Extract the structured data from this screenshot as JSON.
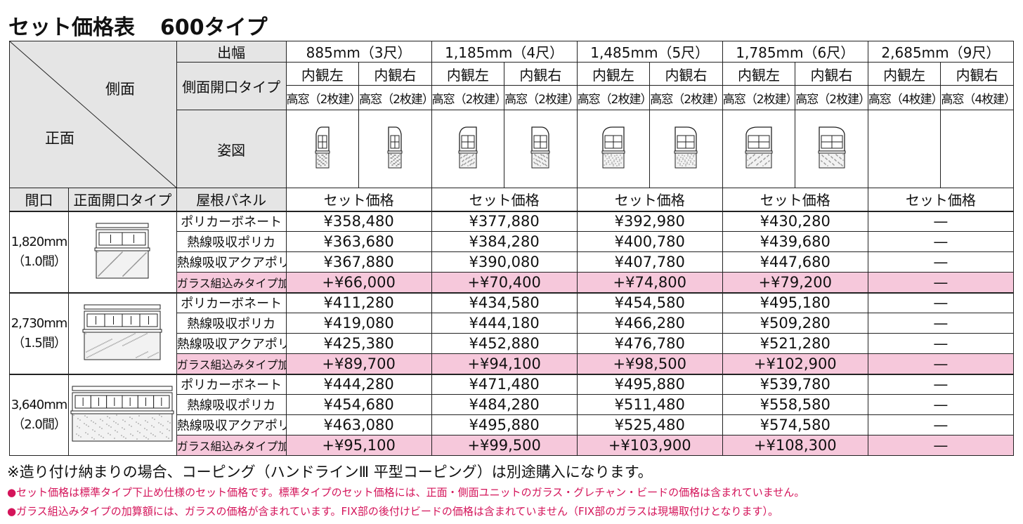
{
  "title": "セット価格表",
  "subtitle": "600タイプ",
  "header": {
    "corner_side": "側面",
    "corner_front": "正面",
    "width_label": "出幅",
    "side_open_label": "側面開口タイプ",
    "figure_label": "姿図",
    "col_maguchi": "間口",
    "col_front_open": "正面開口タイプ",
    "col_roof": "屋根パネル",
    "set_price": "セット価格",
    "widths": [
      "885mm（3尺）",
      "1,185mm（4尺）",
      "1,485mm（5尺）",
      "1,785mm（6尺）",
      "2,685mm（9尺）"
    ],
    "left": "内観左",
    "right": "内観右",
    "windows": [
      [
        "高窓（2枚建）",
        "高窓（2枚建）"
      ],
      [
        "高窓（2枚建）",
        "高窓（2枚建）"
      ],
      [
        "高窓（2枚建）",
        "高窓（2枚建）"
      ],
      [
        "高窓（2枚建）",
        "高窓（2枚建）"
      ],
      [
        "高窓（4枚建）",
        "高窓（4枚建）"
      ]
    ]
  },
  "groups": [
    {
      "maguchi": "1,820mm",
      "ken": "（1.0間）",
      "rows": [
        {
          "panel": "ポリカーボネート",
          "prices": [
            "¥358,480",
            "¥377,880",
            "¥392,980",
            "¥430,280",
            "—"
          ]
        },
        {
          "panel": "熱線吸収ポリカ",
          "prices": [
            "¥363,680",
            "¥384,280",
            "¥400,780",
            "¥439,680",
            "—"
          ]
        },
        {
          "panel": "熱線吸収アクアポリカ",
          "prices": [
            "¥367,880",
            "¥390,080",
            "¥407,780",
            "¥447,680",
            "—"
          ]
        },
        {
          "panel": "ガラス組込みタイプ加算額",
          "prices": [
            "+¥66,000",
            "+¥70,400",
            "+¥74,800",
            "+¥79,200",
            "—"
          ]
        }
      ]
    },
    {
      "maguchi": "2,730mm",
      "ken": "（1.5間）",
      "rows": [
        {
          "panel": "ポリカーボネート",
          "prices": [
            "¥411,280",
            "¥434,580",
            "¥454,580",
            "¥495,180",
            "—"
          ]
        },
        {
          "panel": "熱線吸収ポリカ",
          "prices": [
            "¥419,080",
            "¥444,180",
            "¥466,280",
            "¥509,280",
            "—"
          ]
        },
        {
          "panel": "熱線吸収アクアポリカ",
          "prices": [
            "¥425,380",
            "¥452,880",
            "¥476,780",
            "¥521,280",
            "—"
          ]
        },
        {
          "panel": "ガラス組込みタイプ加算額",
          "prices": [
            "+¥89,700",
            "+¥94,100",
            "+¥98,500",
            "+¥102,900",
            "—"
          ]
        }
      ]
    },
    {
      "maguchi": "3,640mm",
      "ken": "（2.0間）",
      "rows": [
        {
          "panel": "ポリカーボネート",
          "prices": [
            "¥444,280",
            "¥471,480",
            "¥495,880",
            "¥539,780",
            "—"
          ]
        },
        {
          "panel": "熱線吸収ポリカ",
          "prices": [
            "¥454,680",
            "¥484,280",
            "¥511,480",
            "¥558,580",
            "—"
          ]
        },
        {
          "panel": "熱線吸収アクアポリカ",
          "prices": [
            "¥463,080",
            "¥495,880",
            "¥525,480",
            "¥574,580",
            "—"
          ]
        },
        {
          "panel": "ガラス組込みタイプ加算額",
          "prices": [
            "+¥95,100",
            "+¥99,500",
            "+¥103,900",
            "+¥108,300",
            "—"
          ]
        }
      ]
    }
  ],
  "notes": {
    "n1": "※造り付け納まりの場合、コーピング（ハンドラインⅢ 平型コーピング）は別途購入になります。",
    "n2": "セット価格は標準タイプ下止め仕様のセット価格です。標準タイプのセット価格には、正面・側面ユニットのガラス・グレチャン・ビードの価格は含まれていません。",
    "n3": "ガラス組込みタイプの加算額には、ガラスの価格が含まれています。FIX部の後付けビードの価格は含まれていません（FIX部のガラスは現場取付けとなります）。",
    "bullet": "●"
  },
  "colors": {
    "header_bg": "#e5e5e5",
    "pink": "#f6c8db",
    "note_red": "#d4145a"
  }
}
